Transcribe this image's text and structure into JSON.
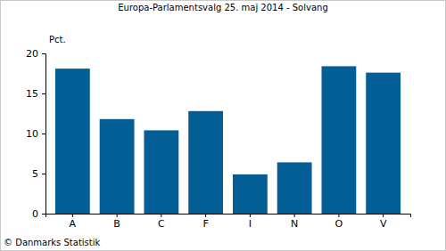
{
  "chart_data": {
    "type": "bar",
    "title": "Europa-Parlamentsvalg 25. maj 2014 - Solvang",
    "y_label": "Pct.",
    "categories": [
      "A",
      "B",
      "C",
      "F",
      "I",
      "N",
      "O",
      "V"
    ],
    "values": [
      18.1,
      11.8,
      10.4,
      12.8,
      4.9,
      6.4,
      18.4,
      17.6
    ],
    "color": "#045e96",
    "ylim": [
      0,
      20
    ],
    "yticks": [
      0,
      5,
      10,
      15,
      20
    ],
    "grid": false,
    "annotations": [
      "© Danmarks Statistik"
    ]
  }
}
